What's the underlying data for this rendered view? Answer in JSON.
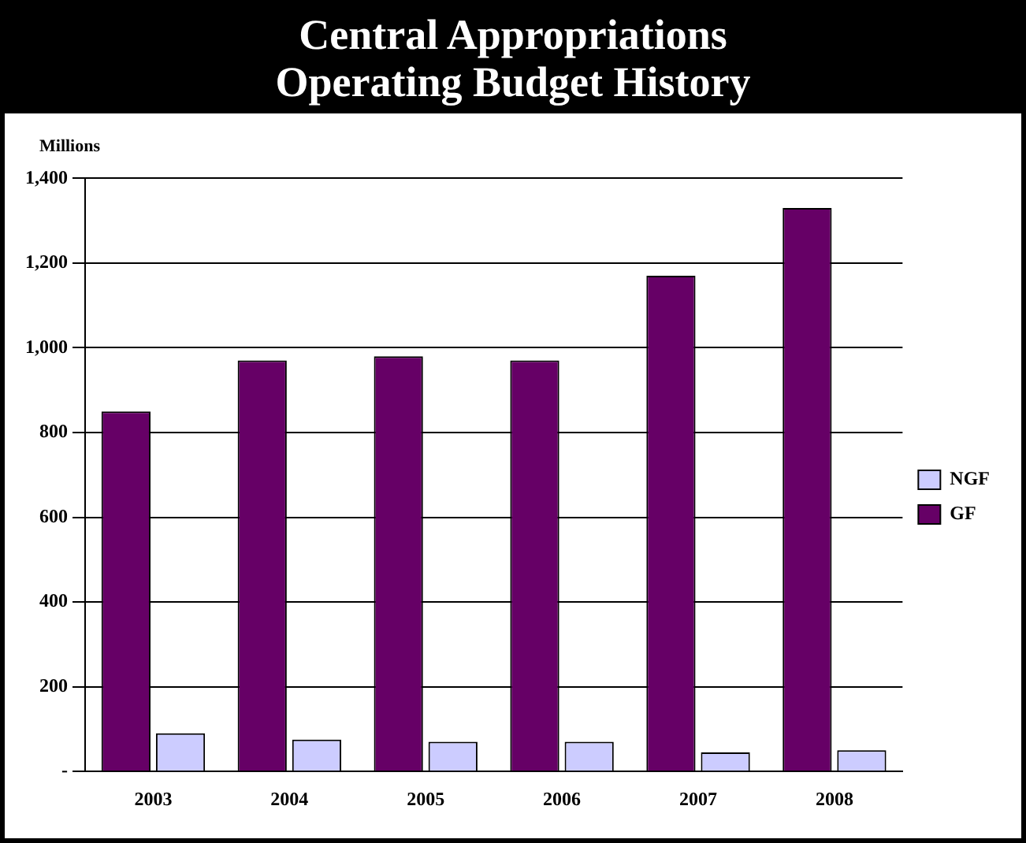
{
  "chart_data": {
    "type": "bar",
    "title": "Central Appropriations\nOperating Budget History",
    "ylabel": "Millions",
    "categories": [
      "2003",
      "2004",
      "2005",
      "2006",
      "2007",
      "2008"
    ],
    "series": [
      {
        "name": "GF",
        "color": "#660066",
        "values": [
          850,
          970,
          980,
          970,
          1170,
          1330
        ]
      },
      {
        "name": "NGF",
        "color": "#ccccff",
        "values": [
          90,
          75,
          70,
          70,
          45,
          50
        ]
      }
    ],
    "ylim": [
      0,
      1400
    ],
    "yticks": [
      {
        "value": 0,
        "label": "-"
      },
      200,
      400,
      600,
      800,
      {
        "value": 1000,
        "label": "1,000"
      },
      {
        "value": 1200,
        "label": "1,200"
      },
      {
        "value": 1400,
        "label": "1,400"
      }
    ],
    "grid": "y",
    "legend": "right"
  }
}
